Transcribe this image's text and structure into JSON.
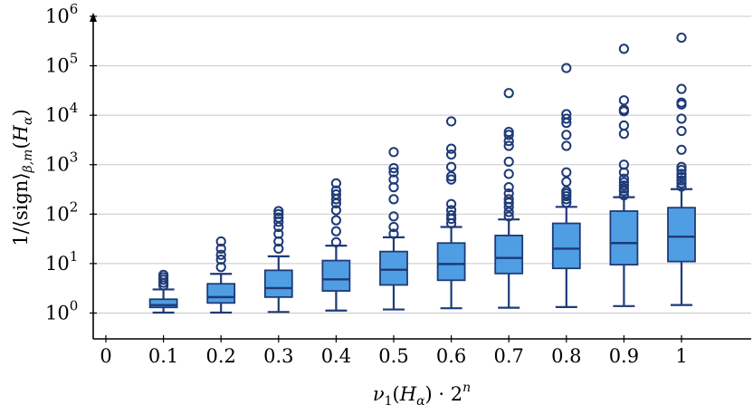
{
  "chart_data": {
    "type": "box",
    "title": "",
    "xlabel": "ν₁(H_α) · 2ⁿ",
    "ylabel": "1/⟨sign⟩_{β,m}(H_α)",
    "yscale": "log",
    "ylim": [
      0.3,
      1000000
    ],
    "xlim": [
      -0.02,
      1.12
    ],
    "grid": "horizontal",
    "legend": "none",
    "x_ticks": [
      "0",
      "0.1",
      "0.2",
      "0.3",
      "0.4",
      "0.5",
      "0.6",
      "0.7",
      "0.8",
      "0.9",
      "1"
    ],
    "y_ticks": [
      {
        "value": 1,
        "base": "10",
        "exp": "0"
      },
      {
        "value": 10,
        "base": "10",
        "exp": "1"
      },
      {
        "value": 100,
        "base": "10",
        "exp": "2"
      },
      {
        "value": 1000,
        "base": "10",
        "exp": "3"
      },
      {
        "value": 10000,
        "base": "10",
        "exp": "4"
      },
      {
        "value": 100000,
        "base": "10",
        "exp": "5"
      },
      {
        "value": 1000000,
        "base": "10",
        "exp": "6"
      }
    ],
    "colors": {
      "fill": "#4f9ee3",
      "stroke": "#1e3a78",
      "grid": "#c8c8c8",
      "axis": "#000000"
    },
    "boxes": [
      {
        "x": 0.1,
        "min": 1.02,
        "q1": 1.3,
        "median": 1.45,
        "q3": 1.9,
        "max": 3.0,
        "outliers": [
          3.6,
          4.1,
          4.7,
          5.3,
          5.9
        ]
      },
      {
        "x": 0.2,
        "min": 1.02,
        "q1": 1.6,
        "median": 2.1,
        "q3": 3.9,
        "max": 6.2,
        "outliers": [
          8.5,
          12,
          15,
          20,
          28
        ]
      },
      {
        "x": 0.3,
        "min": 1.05,
        "q1": 2.1,
        "median": 3.2,
        "q3": 7.3,
        "max": 14,
        "outliers": [
          20,
          28,
          40,
          55,
          70,
          85,
          100,
          115
        ]
      },
      {
        "x": 0.4,
        "min": 1.12,
        "q1": 2.8,
        "median": 4.8,
        "q3": 11.5,
        "max": 23,
        "outliers": [
          27,
          45,
          75,
          120,
          165,
          200,
          250,
          300,
          420
        ]
      },
      {
        "x": 0.5,
        "min": 1.18,
        "q1": 3.7,
        "median": 7.5,
        "q3": 17.5,
        "max": 34,
        "outliers": [
          40,
          55,
          90,
          200,
          350,
          500,
          700,
          850,
          1800
        ]
      },
      {
        "x": 0.6,
        "min": 1.25,
        "q1": 4.6,
        "median": 9.8,
        "q3": 26,
        "max": 55,
        "outliers": [
          65,
          80,
          95,
          120,
          160,
          500,
          580,
          900,
          1600,
          2100,
          7500
        ]
      },
      {
        "x": 0.7,
        "min": 1.28,
        "q1": 6.3,
        "median": 13,
        "q3": 37,
        "max": 78,
        "outliers": [
          90,
          110,
          140,
          170,
          200,
          260,
          350,
          650,
          1150,
          2400,
          3000,
          4000,
          4600,
          28000
        ]
      },
      {
        "x": 0.8,
        "min": 1.32,
        "q1": 8.0,
        "median": 20,
        "q3": 65,
        "max": 140,
        "outliers": [
          170,
          200,
          230,
          260,
          290,
          450,
          700,
          2400,
          4000,
          7000,
          8500,
          10500,
          90000
        ]
      },
      {
        "x": 0.9,
        "min": 1.38,
        "q1": 9.5,
        "median": 26,
        "q3": 115,
        "max": 220,
        "outliers": [
          240,
          290,
          330,
          380,
          440,
          520,
          700,
          1000,
          4200,
          6200,
          12000,
          13000,
          20000,
          220000
        ]
      },
      {
        "x": 1.0,
        "min": 1.45,
        "q1": 11,
        "median": 35,
        "q3": 135,
        "max": 320,
        "outliers": [
          360,
          420,
          480,
          560,
          650,
          780,
          900,
          2000,
          4800,
          8500,
          16500,
          18000,
          34000,
          370000
        ]
      }
    ]
  }
}
